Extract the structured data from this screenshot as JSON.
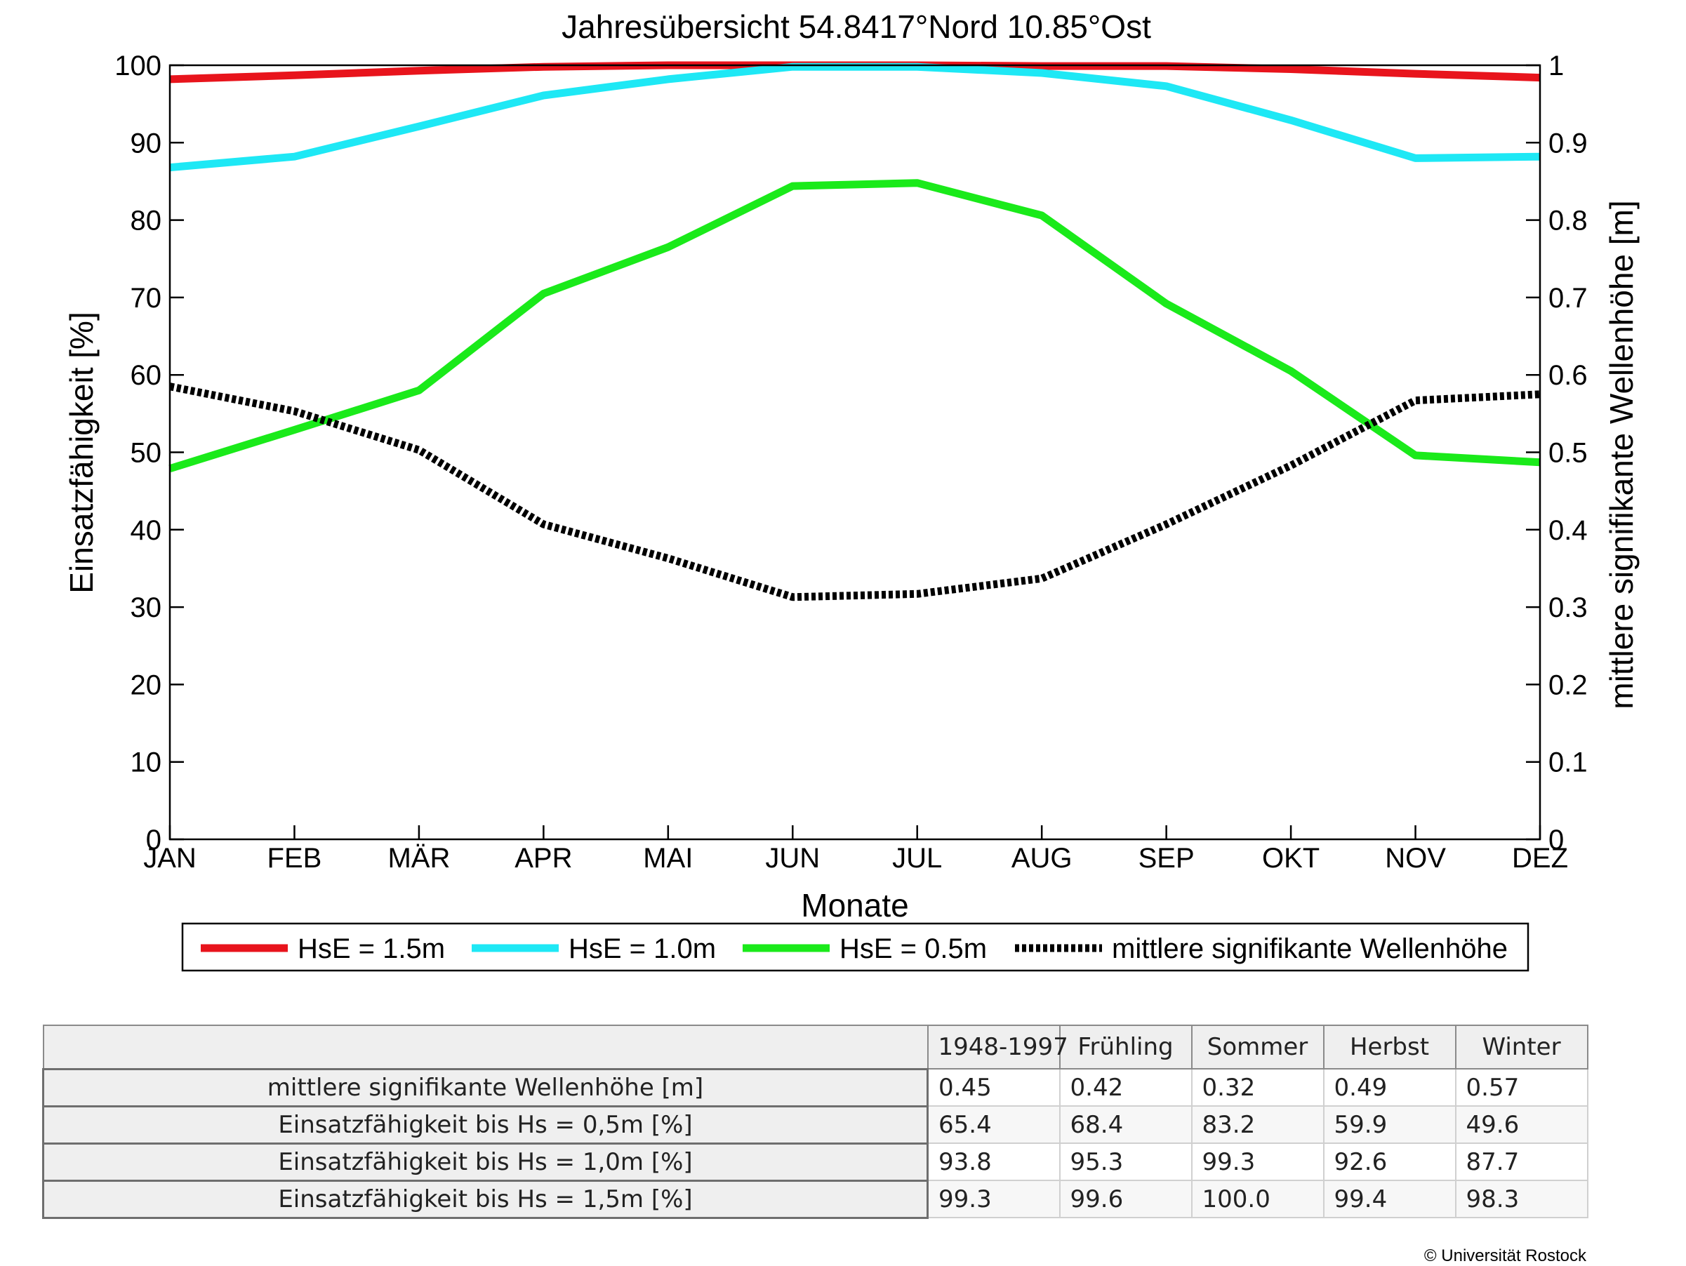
{
  "chart_data": {
    "type": "line",
    "title": "Jahresübersicht  54.8417°Nord  10.85°Ost",
    "xlabel": "Monate",
    "ylabel": "Einsatzfähigkeit [%]",
    "y2label": "mittlere signifikante Wellenhöhe [m]",
    "categories": [
      "JAN",
      "FEB",
      "MÄR",
      "APR",
      "MAI",
      "JUN",
      "JUL",
      "AUG",
      "SEP",
      "OKT",
      "NOV",
      "DEZ"
    ],
    "ylim": [
      0,
      100
    ],
    "y2lim": [
      0,
      1
    ],
    "yticks": [
      "0",
      "10",
      "20",
      "30",
      "40",
      "50",
      "60",
      "70",
      "80",
      "90",
      "100"
    ],
    "y2ticks": [
      "0",
      "0.1",
      "0.2",
      "0.3",
      "0.4",
      "0.5",
      "0.6",
      "0.7",
      "0.8",
      "0.9",
      "1"
    ],
    "grid": false,
    "legend_position": "bottom",
    "series": [
      {
        "name": "HsE = 1.5m",
        "axis": "left",
        "color": "#e8141c",
        "style": "solid",
        "values": [
          98.2,
          98.7,
          99.3,
          99.8,
          100.0,
          100.0,
          100.0,
          99.9,
          99.9,
          99.5,
          98.9,
          98.4
        ]
      },
      {
        "name": "HsE = 1.0m",
        "axis": "left",
        "color": "#1ee8f5",
        "style": "solid",
        "values": [
          86.8,
          88.2,
          92.1,
          96.1,
          98.2,
          99.8,
          99.8,
          99.0,
          97.3,
          92.9,
          88.0,
          88.2
        ]
      },
      {
        "name": "HsE = 0.5m",
        "axis": "left",
        "color": "#1aea1a",
        "style": "solid",
        "values": [
          47.9,
          52.9,
          58.0,
          70.5,
          76.5,
          84.4,
          84.8,
          80.6,
          69.2,
          60.5,
          49.6,
          48.7
        ]
      },
      {
        "name": "mittlere signifikante Wellenhöhe",
        "axis": "right",
        "color": "#000000",
        "style": "dotted",
        "values": [
          0.585,
          0.553,
          0.503,
          0.407,
          0.363,
          0.313,
          0.317,
          0.337,
          0.407,
          0.483,
          0.567,
          0.575
        ]
      }
    ]
  },
  "table": {
    "headers": [
      "",
      "1948-1997",
      "Frühling",
      "Sommer",
      "Herbst",
      "Winter"
    ],
    "rows": [
      {
        "label": "mittlere signifikante Wellenhöhe [m]",
        "values": [
          "0.45",
          "0.42",
          "0.32",
          "0.49",
          "0.57"
        ]
      },
      {
        "label": "Einsatzfähigkeit bis Hs = 0,5m [%]",
        "values": [
          "65.4",
          "68.4",
          "83.2",
          "59.9",
          "49.6"
        ]
      },
      {
        "label": "Einsatzfähigkeit bis Hs = 1,0m [%]",
        "values": [
          "93.8",
          "95.3",
          "99.3",
          "92.6",
          "87.7"
        ]
      },
      {
        "label": "Einsatzfähigkeit bis Hs = 1,5m [%]",
        "values": [
          "99.3",
          "99.6",
          "100.0",
          "99.4",
          "98.3"
        ]
      }
    ]
  },
  "copyright": "© Universität Rostock"
}
